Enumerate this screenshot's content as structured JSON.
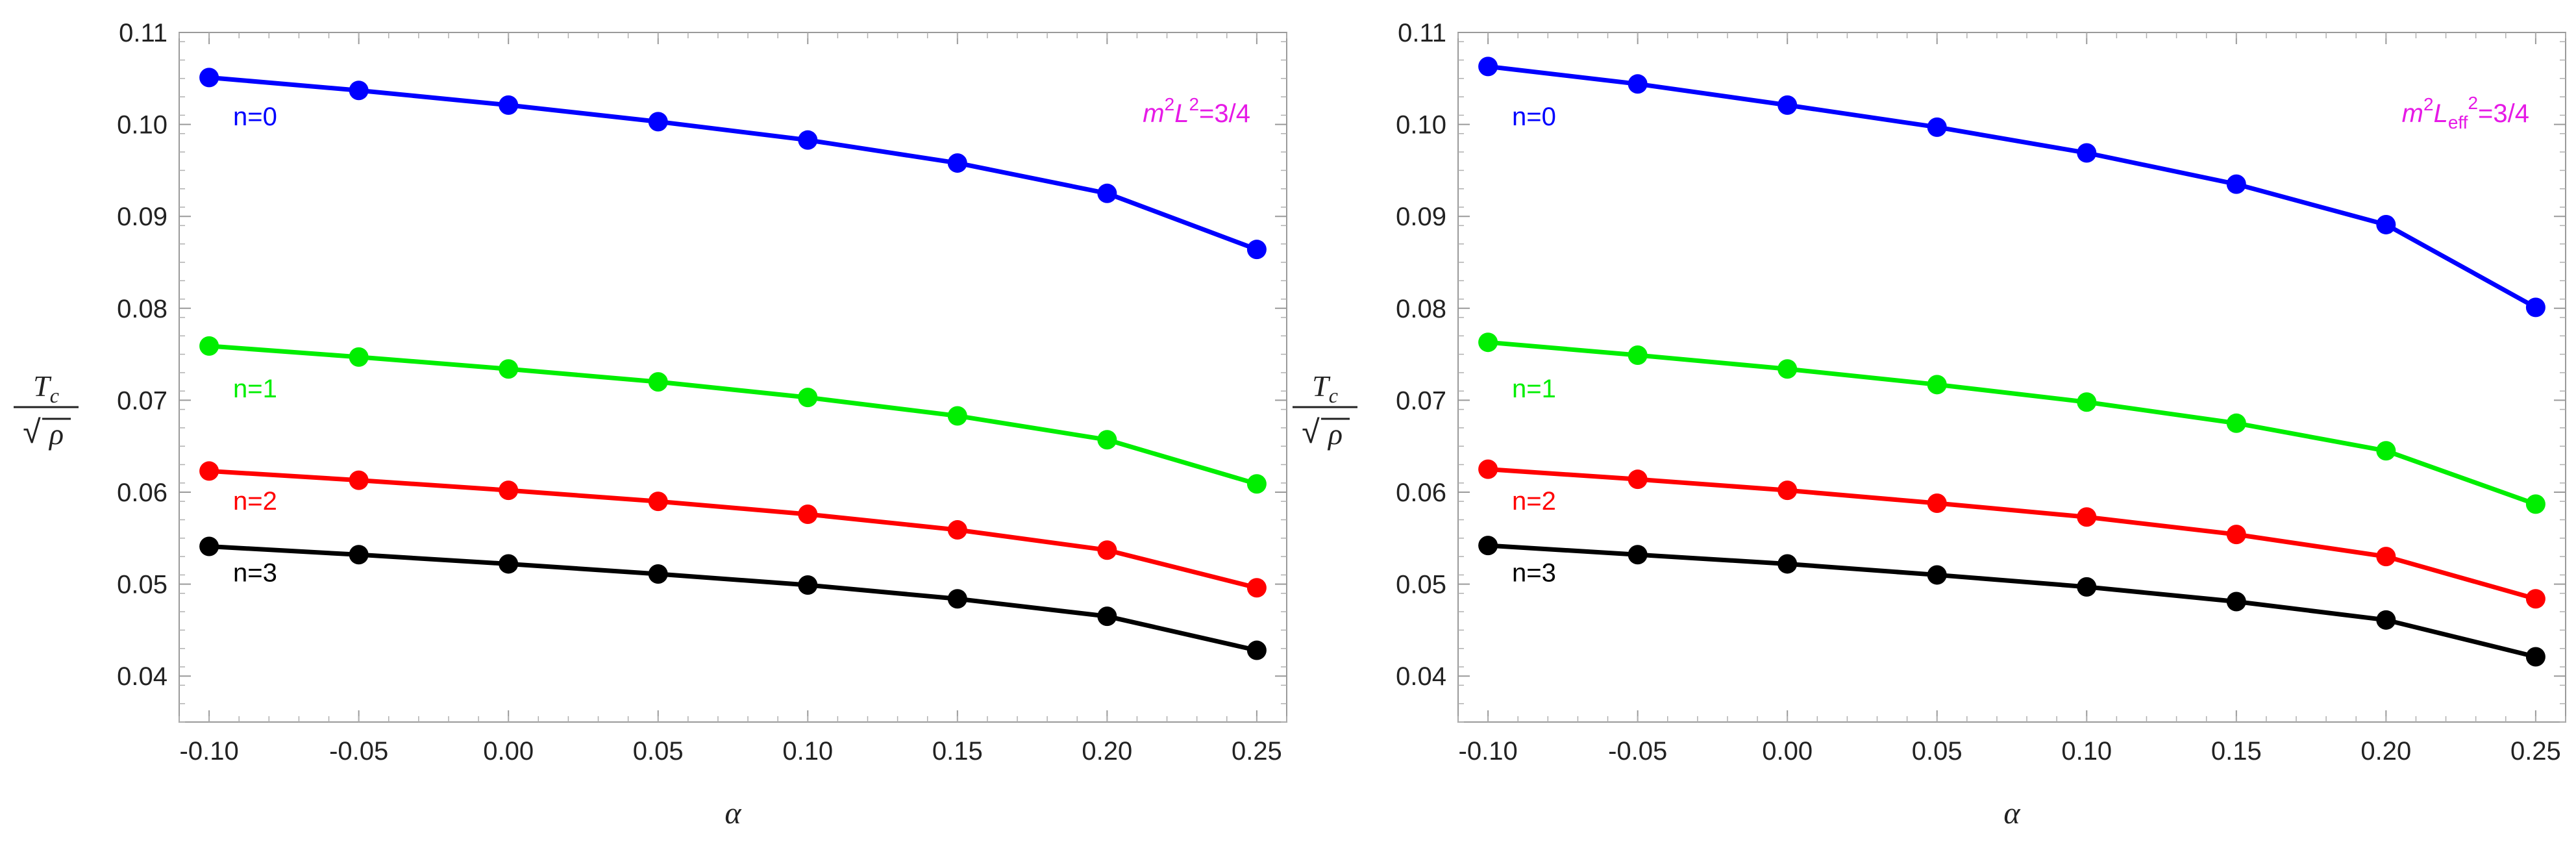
{
  "chart_data": [
    {
      "type": "line",
      "x": [
        -0.1,
        -0.05,
        0.0,
        0.05,
        0.1,
        0.15,
        0.2,
        0.25
      ],
      "x_ticks": [
        "-0.10",
        "-0.05",
        "0.00",
        "0.05",
        "0.10",
        "0.15",
        "0.20",
        "0.25"
      ],
      "y_ticks": [
        "0.04",
        "0.05",
        "0.06",
        "0.07",
        "0.08",
        "0.09",
        "0.10",
        "0.11"
      ],
      "xlim": [
        -0.11,
        0.26
      ],
      "ylim": [
        0.035,
        0.11
      ],
      "xlabel": "α",
      "ylabel": {
        "numerator": "T",
        "subscript": "c",
        "radical": "√",
        "denominator": "ρ"
      },
      "annotation": {
        "base": "m",
        "sup1": "2",
        "mid": "L",
        "sub": "",
        "sup2": "2",
        "rest": "=3/4"
      },
      "series": [
        {
          "name": "n=0",
          "color": "#0000ff",
          "values": [
            0.1051,
            0.1037,
            0.1021,
            0.1003,
            0.0983,
            0.0958,
            0.0925,
            0.0864
          ]
        },
        {
          "name": "n=1",
          "color": "#00ee00",
          "values": [
            0.0759,
            0.0747,
            0.0734,
            0.072,
            0.0703,
            0.0683,
            0.0657,
            0.0609
          ]
        },
        {
          "name": "n=2",
          "color": "#ff0000",
          "values": [
            0.0623,
            0.0613,
            0.0602,
            0.059,
            0.0576,
            0.0559,
            0.0537,
            0.0496
          ]
        },
        {
          "name": "n=3",
          "color": "#000000",
          "values": [
            0.0541,
            0.0532,
            0.0522,
            0.0511,
            0.0499,
            0.0484,
            0.0465,
            0.0428
          ]
        }
      ]
    },
    {
      "type": "line",
      "x": [
        -0.1,
        -0.05,
        0.0,
        0.05,
        0.1,
        0.15,
        0.2,
        0.25
      ],
      "x_ticks": [
        "-0.10",
        "-0.05",
        "0.00",
        "0.05",
        "0.10",
        "0.15",
        "0.20",
        "0.25"
      ],
      "y_ticks": [
        "0.04",
        "0.05",
        "0.06",
        "0.07",
        "0.08",
        "0.09",
        "0.10",
        "0.11"
      ],
      "xlim": [
        -0.11,
        0.26
      ],
      "ylim": [
        0.035,
        0.11
      ],
      "xlabel": "α",
      "ylabel": {
        "numerator": "T",
        "subscript": "c",
        "radical": "√",
        "denominator": "ρ"
      },
      "annotation": {
        "base": "m",
        "sup1": "2",
        "mid": "L",
        "sub": "eff",
        "sup2": "2",
        "rest": "=3/4"
      },
      "series": [
        {
          "name": "n=0",
          "color": "#0000ff",
          "values": [
            0.1063,
            0.1044,
            0.1021,
            0.0997,
            0.0969,
            0.0935,
            0.0891,
            0.0801
          ]
        },
        {
          "name": "n=1",
          "color": "#00ee00",
          "values": [
            0.0763,
            0.0749,
            0.0734,
            0.0717,
            0.0698,
            0.0675,
            0.0645,
            0.0587
          ]
        },
        {
          "name": "n=2",
          "color": "#ff0000",
          "values": [
            0.0625,
            0.0614,
            0.0602,
            0.0588,
            0.0573,
            0.0554,
            0.053,
            0.0484
          ]
        },
        {
          "name": "n=3",
          "color": "#000000",
          "values": [
            0.0542,
            0.0532,
            0.0522,
            0.051,
            0.0497,
            0.0481,
            0.0461,
            0.0421
          ]
        }
      ]
    }
  ]
}
